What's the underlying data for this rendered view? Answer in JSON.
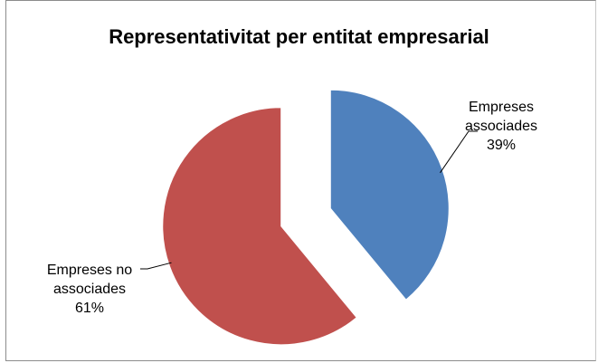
{
  "chart_data": {
    "type": "pie",
    "title": "Representativitat per entitat empresarial",
    "categories": [
      "Empreses associades",
      "Empreses no associades"
    ],
    "values": [
      39,
      61
    ],
    "colors": [
      "#4f81bd",
      "#c0504d"
    ],
    "exploded": true,
    "data_labels": [
      {
        "lines": [
          "Empreses",
          "associades",
          "39%"
        ]
      },
      {
        "lines": [
          "Empreses no",
          "associades",
          "61%"
        ]
      }
    ]
  }
}
